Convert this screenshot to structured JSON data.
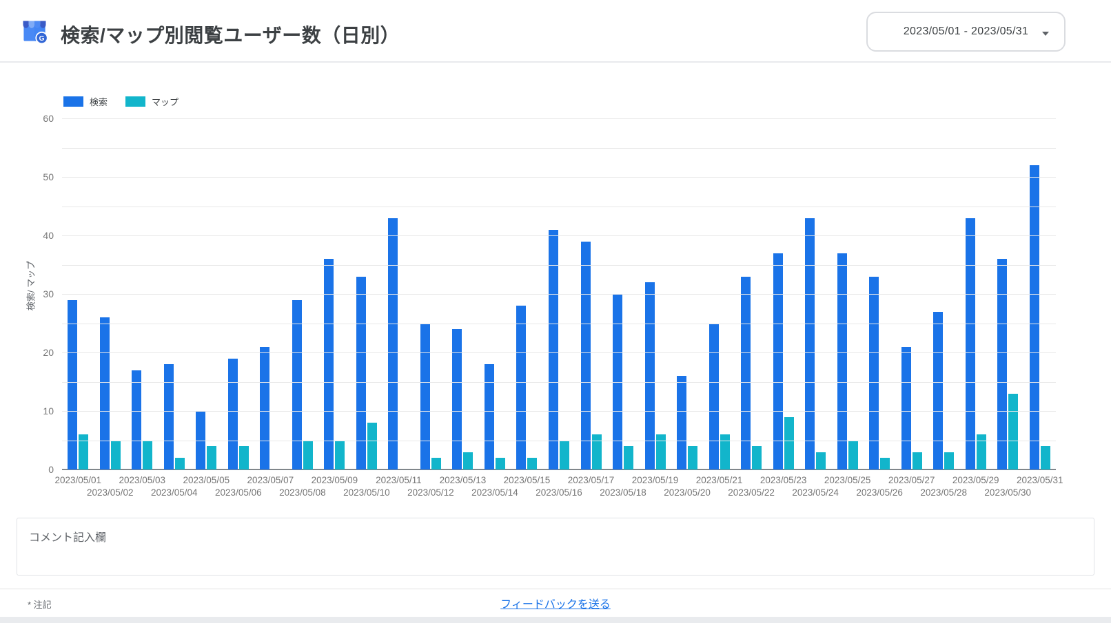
{
  "header": {
    "title": "検索/マップ別閲覧ユーザー数（日別）",
    "icon": "google-my-business-icon",
    "date_range": "2023/05/01 - 2023/05/31"
  },
  "chart_data": {
    "type": "bar",
    "title": "検索/マップ別閲覧ユーザー数（日別）",
    "categories": [
      "2023/05/01",
      "2023/05/02",
      "2023/05/03",
      "2023/05/04",
      "2023/05/05",
      "2023/05/06",
      "2023/05/07",
      "2023/05/08",
      "2023/05/09",
      "2023/05/10",
      "2023/05/11",
      "2023/05/12",
      "2023/05/13",
      "2023/05/14",
      "2023/05/15",
      "2023/05/16",
      "2023/05/17",
      "2023/05/18",
      "2023/05/19",
      "2023/05/20",
      "2023/05/21",
      "2023/05/22",
      "2023/05/23",
      "2023/05/24",
      "2023/05/25",
      "2023/05/26",
      "2023/05/27",
      "2023/05/28",
      "2023/05/29",
      "2023/05/30",
      "2023/05/31"
    ],
    "series": [
      {
        "name": "検索",
        "color": "#1a73e8",
        "values": [
          29,
          26,
          17,
          18,
          10,
          19,
          21,
          29,
          36,
          33,
          43,
          25,
          24,
          18,
          28,
          41,
          39,
          30,
          32,
          16,
          25,
          33,
          37,
          43,
          37,
          33,
          21,
          27,
          43,
          36,
          52
        ]
      },
      {
        "name": "マップ",
        "color": "#12b5cb",
        "values": [
          6,
          5,
          5,
          2,
          4,
          4,
          0,
          5,
          5,
          8,
          0,
          2,
          3,
          2,
          2,
          5,
          6,
          4,
          6,
          4,
          6,
          4,
          9,
          3,
          5,
          2,
          3,
          3,
          6,
          13,
          4
        ]
      }
    ],
    "xlabel": "",
    "ylabel": "検索/ マップ",
    "ylim": [
      0,
      60
    ],
    "yticks": [
      0,
      10,
      20,
      30,
      40,
      50,
      60
    ],
    "gridline_step": 5,
    "grid": true,
    "legend_position": "top-left",
    "xlabel_layout": "staggered-two-rows"
  },
  "comment_box": {
    "label": "コメント記入欄"
  },
  "footer": {
    "note": "* 注記",
    "feedback_link": "フィードバックを送る"
  }
}
